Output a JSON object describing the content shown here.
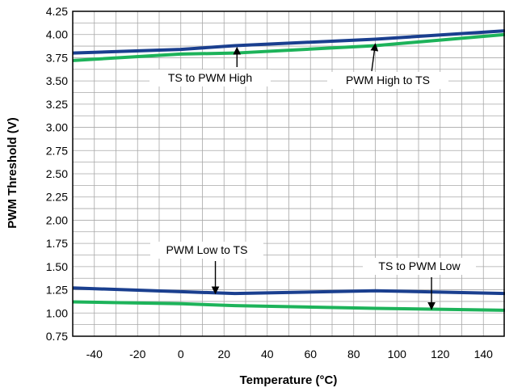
{
  "chart_data": {
    "type": "line",
    "xlabel": "Temperature (°C)",
    "ylabel": "PWM Threshold (V)",
    "xlim": [
      -50,
      150
    ],
    "ylim": [
      0.75,
      4.25
    ],
    "x_ticks": [
      -40,
      -20,
      0,
      20,
      40,
      60,
      80,
      100,
      120,
      140
    ],
    "x_tick_labels": [
      "-40",
      "-20",
      "0",
      "20",
      "40",
      "60",
      "80",
      "100",
      "120",
      "140"
    ],
    "y_ticks": [
      0.75,
      1.0,
      1.25,
      1.5,
      1.75,
      2.0,
      2.25,
      2.5,
      2.75,
      3.0,
      3.25,
      3.5,
      3.75,
      4.0,
      4.25
    ],
    "y_tick_labels": [
      "0.75",
      "1.00",
      "1.25",
      "1.50",
      "1.75",
      "2.00",
      "2.25",
      "2.50",
      "2.75",
      "3.00",
      "3.25",
      "3.50",
      "3.75",
      "4.00",
      "4.25"
    ],
    "grid": true,
    "series": [
      {
        "name": "TS to PWM High",
        "color": "#1a3f8f",
        "x": [
          -50,
          0,
          25,
          90,
          150
        ],
        "y": [
          3.8,
          3.84,
          3.88,
          3.95,
          4.04
        ]
      },
      {
        "name": "PWM High to TS",
        "color": "#1db35a",
        "x": [
          -50,
          0,
          25,
          90,
          150
        ],
        "y": [
          3.72,
          3.79,
          3.8,
          3.88,
          4.0
        ]
      },
      {
        "name": "PWM Low to TS",
        "color": "#1a3f8f",
        "x": [
          -50,
          0,
          25,
          90,
          150
        ],
        "y": [
          1.27,
          1.23,
          1.21,
          1.24,
          1.21
        ]
      },
      {
        "name": "TS to PWM Low",
        "color": "#1db35a",
        "x": [
          -50,
          0,
          25,
          90,
          150
        ],
        "y": [
          1.12,
          1.1,
          1.08,
          1.05,
          1.03
        ]
      }
    ],
    "annotations": [
      {
        "text": "TS to PWM High",
        "point": [
          26,
          3.86
        ]
      },
      {
        "text": "PWM High to TS",
        "point": [
          90,
          3.9
        ]
      },
      {
        "text": "PWM Low to TS",
        "point": [
          16,
          1.21
        ]
      },
      {
        "text": "TS to PWM Low",
        "point": [
          116,
          1.04
        ]
      }
    ]
  }
}
